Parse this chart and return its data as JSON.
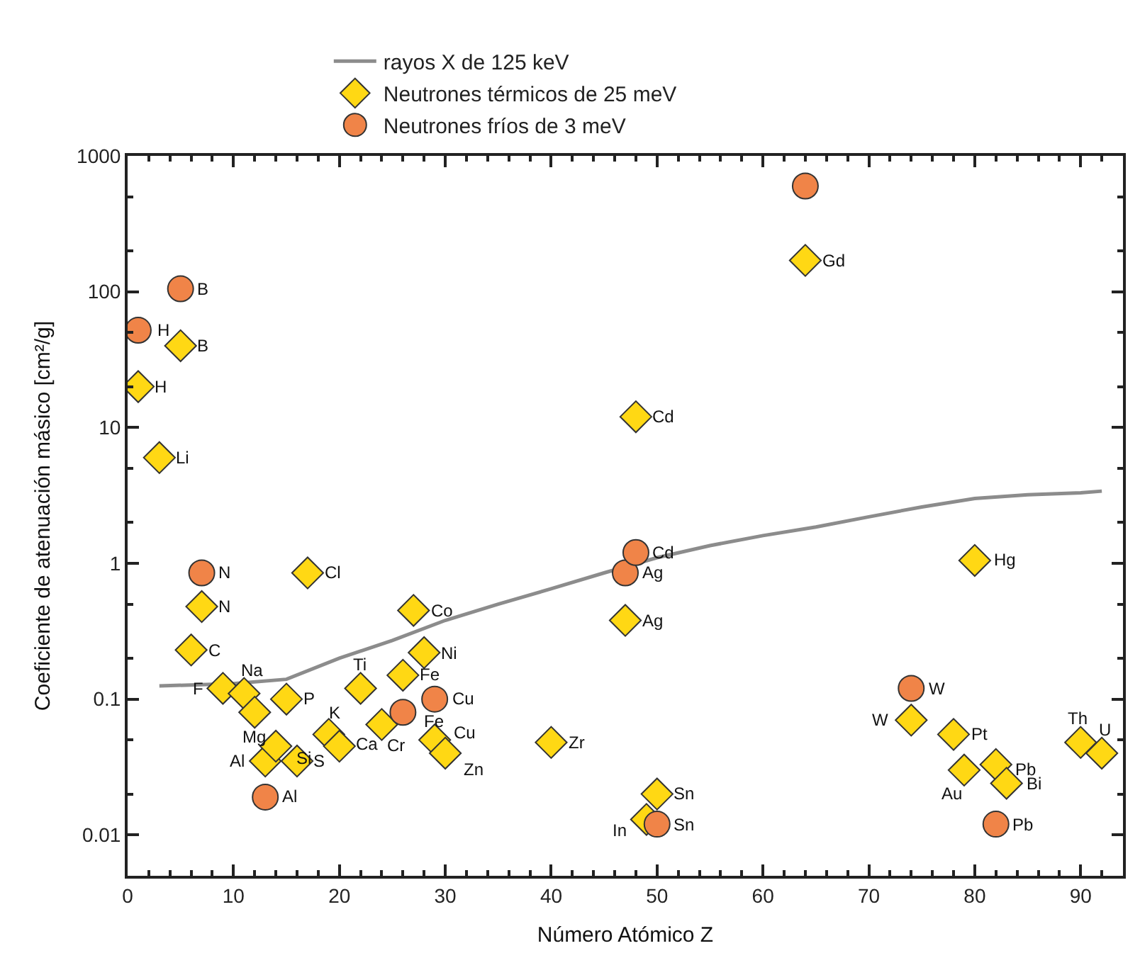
{
  "chart_data": {
    "type": "scatter",
    "xlabel": "Número Atómico Z",
    "ylabel": "Coeficiente de atenuación másico [cm²/g]",
    "log": "y",
    "grid": false,
    "legend": "top",
    "xlim": [
      0,
      94
    ],
    "xticks": [
      0,
      10,
      20,
      30,
      40,
      50,
      60,
      70,
      80,
      90
    ],
    "ylim": [
      0.005,
      1000
    ],
    "yticks": [
      {
        "value": 0.01,
        "label": "0.01"
      },
      {
        "value": 0.1,
        "label": "0.1"
      },
      1,
      10,
      100,
      1000
    ],
    "series": [
      {
        "name": "rayos X de 125 keV",
        "type": "line",
        "color": "#8c8c8c",
        "marker": "none",
        "line_style": "solid",
        "x": [
          3,
          10,
          15,
          20,
          25,
          30,
          35,
          40,
          45,
          50,
          55,
          60,
          65,
          70,
          75,
          80,
          85,
          90,
          92
        ],
        "values": [
          0.125,
          0.13,
          0.14,
          0.2,
          0.27,
          0.38,
          0.5,
          0.65,
          0.85,
          1.1,
          1.35,
          1.6,
          1.85,
          2.2,
          2.6,
          3.0,
          3.2,
          3.3,
          3.4
        ]
      },
      {
        "name": "Neutrones térmicos de 25 meV",
        "color": "#ffd814",
        "marker": "diamond",
        "x": [
          1,
          3,
          5,
          6,
          7,
          9,
          11,
          12,
          13,
          14,
          15,
          16,
          17,
          19,
          20,
          22,
          24,
          26,
          27,
          28,
          29,
          30,
          40,
          47,
          48,
          49,
          50,
          64,
          74,
          78,
          79,
          80,
          82,
          83,
          90,
          92
        ],
        "values": [
          20,
          6,
          40,
          0.23,
          0.48,
          0.12,
          0.11,
          0.08,
          0.035,
          0.045,
          0.1,
          0.035,
          0.85,
          0.055,
          0.045,
          0.12,
          0.065,
          0.15,
          0.45,
          0.22,
          0.05,
          0.04,
          0.048,
          0.38,
          12,
          0.013,
          0.02,
          170,
          0.07,
          0.055,
          0.03,
          1.05,
          0.033,
          0.024,
          0.048,
          0.04
        ]
      },
      {
        "name": "Neutrones fríos de 3 meV",
        "color": "#f08448",
        "marker": "circle",
        "x": [
          1,
          5,
          7,
          13,
          26,
          29,
          47,
          48,
          50,
          64,
          74,
          82
        ],
        "values": [
          52,
          105,
          0.85,
          0.019,
          0.08,
          0.1,
          0.85,
          1.2,
          0.012,
          600,
          0.12,
          0.012
        ]
      }
    ],
    "annotations": [
      {
        "text": "H",
        "x": 1,
        "y": 20
      },
      {
        "text": "Li",
        "x": 3,
        "y": 6
      },
      {
        "text": "B",
        "x": 5,
        "y": 40
      },
      {
        "text": "C",
        "x": 6,
        "y": 0.23
      },
      {
        "text": "N",
        "x": 7,
        "y": 0.48
      },
      {
        "text": "F",
        "x": 9,
        "y": 0.12
      },
      {
        "text": "Na",
        "x": 11,
        "y": 0.11
      },
      {
        "text": "Mg",
        "x": 12,
        "y": 0.08
      },
      {
        "text": "Al",
        "x": 13,
        "y": 0.035
      },
      {
        "text": "Si",
        "x": 14,
        "y": 0.045
      },
      {
        "text": "P",
        "x": 15,
        "y": 0.1
      },
      {
        "text": "S",
        "x": 16,
        "y": 0.035
      },
      {
        "text": "Cl",
        "x": 17,
        "y": 0.85
      },
      {
        "text": "K",
        "x": 19,
        "y": 0.055
      },
      {
        "text": "Ca",
        "x": 20,
        "y": 0.045
      },
      {
        "text": "Ti",
        "x": 22,
        "y": 0.12
      },
      {
        "text": "Cr",
        "x": 24,
        "y": 0.065
      },
      {
        "text": "Fe",
        "x": 26,
        "y": 0.15
      },
      {
        "text": "Co",
        "x": 27,
        "y": 0.45
      },
      {
        "text": "Ni",
        "x": 28,
        "y": 0.22
      },
      {
        "text": "Cu",
        "x": 29,
        "y": 0.05
      },
      {
        "text": "Zn",
        "x": 30,
        "y": 0.04
      },
      {
        "text": "Zr",
        "x": 40,
        "y": 0.048
      },
      {
        "text": "Ag",
        "x": 47,
        "y": 0.38
      },
      {
        "text": "Cd",
        "x": 48,
        "y": 12
      },
      {
        "text": "In",
        "x": 49,
        "y": 0.013
      },
      {
        "text": "Sn",
        "x": 50,
        "y": 0.02
      },
      {
        "text": "Gd",
        "x": 64,
        "y": 170
      },
      {
        "text": "W",
        "x": 74,
        "y": 0.07
      },
      {
        "text": "Pt",
        "x": 78,
        "y": 0.055
      },
      {
        "text": "Au",
        "x": 79,
        "y": 0.03
      },
      {
        "text": "Hg",
        "x": 80,
        "y": 1.05
      },
      {
        "text": "Pb",
        "x": 82,
        "y": 0.033
      },
      {
        "text": "Bi",
        "x": 83,
        "y": 0.024
      },
      {
        "text": "Th",
        "x": 90,
        "y": 0.048
      },
      {
        "text": "U",
        "x": 92,
        "y": 0.04
      },
      {
        "text": "H",
        "x": 1,
        "y": 52
      },
      {
        "text": "B",
        "x": 5,
        "y": 105
      },
      {
        "text": "N",
        "x": 7,
        "y": 0.85
      },
      {
        "text": "Al",
        "x": 13,
        "y": 0.019
      },
      {
        "text": "Fe",
        "x": 26,
        "y": 0.08
      },
      {
        "text": "Cu",
        "x": 29,
        "y": 0.1
      },
      {
        "text": "Ag",
        "x": 47,
        "y": 0.85
      },
      {
        "text": "Cd",
        "x": 48,
        "y": 1.2
      },
      {
        "text": "Sn",
        "x": 50,
        "y": 0.012
      },
      {
        "text": "W",
        "x": 74,
        "y": 0.12
      },
      {
        "text": "Pb",
        "x": 82,
        "y": 0.012
      }
    ]
  }
}
